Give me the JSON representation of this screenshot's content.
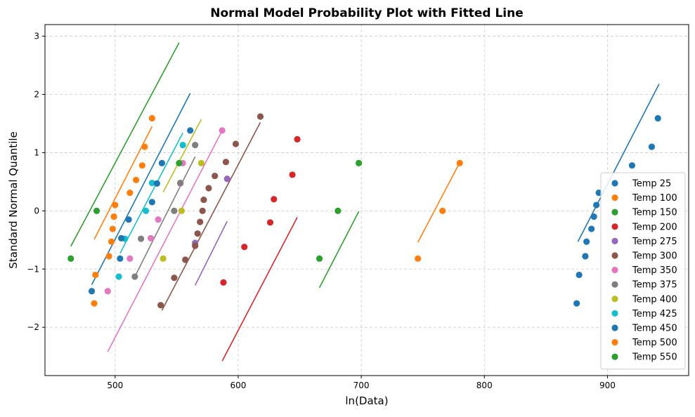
{
  "chart_data": {
    "type": "scatter",
    "title": "Normal Model Probability Plot with Fitted Line",
    "xlabel": "ln(Data)",
    "ylabel": "Standard Normal Quantile",
    "xlim": [
      443,
      966
    ],
    "ylim": [
      -2.83,
      3.2
    ],
    "x_ticks": [
      500,
      600,
      700,
      800,
      900
    ],
    "y_ticks": [
      -2,
      -1,
      0,
      1,
      2,
      3
    ],
    "x_tick_labels": [
      "500",
      "600",
      "700",
      "800",
      "900"
    ],
    "y_tick_labels": [
      "−2",
      "−1",
      "0",
      "1",
      "2",
      "3"
    ],
    "grid": true,
    "legend_position": "bottom-right",
    "series": [
      {
        "name": "Temp 25",
        "color": "#1f77b4",
        "points": [
          [
            875,
            -1.59
          ],
          [
            877,
            -1.1
          ],
          [
            882,
            -0.78
          ],
          [
            883,
            -0.53
          ],
          [
            887,
            -0.31
          ],
          [
            889,
            -0.1
          ],
          [
            891,
            0.1
          ],
          [
            893,
            0.31
          ],
          [
            920,
            0.78
          ],
          [
            936,
            1.1
          ],
          [
            941,
            1.59
          ]
        ],
        "fit": [
          [
            876,
            -0.53
          ],
          [
            942,
            2.18
          ]
        ]
      },
      {
        "name": "Temp 100",
        "color": "#ff7f0e",
        "points": [
          [
            746,
            -0.82
          ],
          [
            766,
            0.0
          ],
          [
            780,
            0.82
          ]
        ],
        "fit": [
          [
            746,
            -0.54
          ],
          [
            780,
            0.83
          ]
        ]
      },
      {
        "name": "Temp 150",
        "color": "#2ca02c",
        "points": [
          [
            666,
            -0.82
          ],
          [
            681,
            0.0
          ],
          [
            698,
            0.82
          ]
        ],
        "fit": [
          [
            666,
            -1.32
          ],
          [
            698,
            -0.01
          ]
        ]
      },
      {
        "name": "Temp 200",
        "color": "#d62728",
        "points": [
          [
            588,
            -1.23
          ],
          [
            605,
            -0.62
          ],
          [
            626,
            -0.2
          ],
          [
            629,
            0.2
          ],
          [
            644,
            0.62
          ],
          [
            648,
            1.23
          ]
        ],
        "fit": [
          [
            587,
            -2.58
          ],
          [
            648,
            -0.11
          ]
        ]
      },
      {
        "name": "Temp 275",
        "color": "#9467bd",
        "points": [
          [
            565,
            -0.55
          ],
          [
            591,
            0.55
          ]
        ],
        "fit": [
          [
            565,
            -1.28
          ],
          [
            591,
            -0.18
          ]
        ]
      },
      {
        "name": "Temp 300",
        "color": "#8c564b",
        "points": [
          [
            537,
            -1.62
          ],
          [
            548,
            -1.15
          ],
          [
            557,
            -0.84
          ],
          [
            565,
            -0.6
          ],
          [
            567,
            -0.39
          ],
          [
            569,
            -0.19
          ],
          [
            571,
            0.0
          ],
          [
            572,
            0.19
          ],
          [
            576,
            0.39
          ],
          [
            581,
            0.6
          ],
          [
            590,
            0.84
          ],
          [
            598,
            1.15
          ],
          [
            618,
            1.62
          ]
        ],
        "fit": [
          [
            538,
            -1.71
          ],
          [
            618,
            1.52
          ]
        ]
      },
      {
        "name": "Temp 350",
        "color": "#e377c2",
        "points": [
          [
            494,
            -1.38
          ],
          [
            512,
            -0.82
          ],
          [
            529,
            -0.47
          ],
          [
            535,
            -0.15
          ],
          [
            553,
            0.47
          ],
          [
            555,
            0.82
          ],
          [
            587,
            1.38
          ]
        ],
        "fit": [
          [
            494,
            -2.42
          ],
          [
            587,
            1.38
          ]
        ]
      },
      {
        "name": "Temp 375",
        "color": "#7f7f7f",
        "points": [
          [
            516,
            -1.13
          ],
          [
            521,
            -0.48
          ],
          [
            548,
            0.0
          ],
          [
            553,
            0.48
          ],
          [
            565,
            1.13
          ]
        ],
        "fit": [
          [
            516,
            -1.13
          ],
          [
            565,
            0.93
          ]
        ]
      },
      {
        "name": "Temp 400",
        "color": "#bcbd22",
        "points": [
          [
            539,
            -0.82
          ],
          [
            554,
            0.0
          ],
          [
            570,
            0.82
          ]
        ],
        "fit": [
          [
            539,
            0.32
          ],
          [
            570,
            1.57
          ]
        ]
      },
      {
        "name": "Temp 425",
        "color": "#17becf",
        "points": [
          [
            503,
            -1.13
          ],
          [
            508,
            -0.48
          ],
          [
            525,
            0.0
          ],
          [
            530,
            0.48
          ],
          [
            555,
            1.13
          ]
        ],
        "fit": [
          [
            504,
            -0.73
          ],
          [
            555,
            1.34
          ]
        ]
      },
      {
        "name": "Temp 450",
        "color": "#1f77b4",
        "points": [
          [
            481,
            -1.38
          ],
          [
            504,
            -0.82
          ],
          [
            505,
            -0.47
          ],
          [
            511,
            -0.15
          ],
          [
            530,
            0.15
          ],
          [
            534,
            0.47
          ],
          [
            538,
            0.82
          ],
          [
            561,
            1.38
          ]
        ],
        "fit": [
          [
            481,
            -1.27
          ],
          [
            561,
            2.02
          ]
        ]
      },
      {
        "name": "Temp 500",
        "color": "#ff7f0e",
        "points": [
          [
            483,
            -1.59
          ],
          [
            484,
            -1.1
          ],
          [
            495,
            -0.78
          ],
          [
            497,
            -0.53
          ],
          [
            498,
            -0.31
          ],
          [
            499,
            -0.1
          ],
          [
            500,
            0.1
          ],
          [
            512,
            0.31
          ],
          [
            517,
            0.53
          ],
          [
            522,
            0.78
          ],
          [
            524,
            1.1
          ],
          [
            530,
            1.59
          ]
        ],
        "fit": [
          [
            483,
            -0.49
          ],
          [
            530,
            1.45
          ]
        ]
      },
      {
        "name": "Temp 550",
        "color": "#2ca02c",
        "points": [
          [
            464,
            -0.82
          ],
          [
            485,
            0.0
          ],
          [
            552,
            0.82
          ]
        ],
        "fit": [
          [
            464,
            -0.61
          ],
          [
            552,
            2.89
          ]
        ]
      }
    ]
  }
}
